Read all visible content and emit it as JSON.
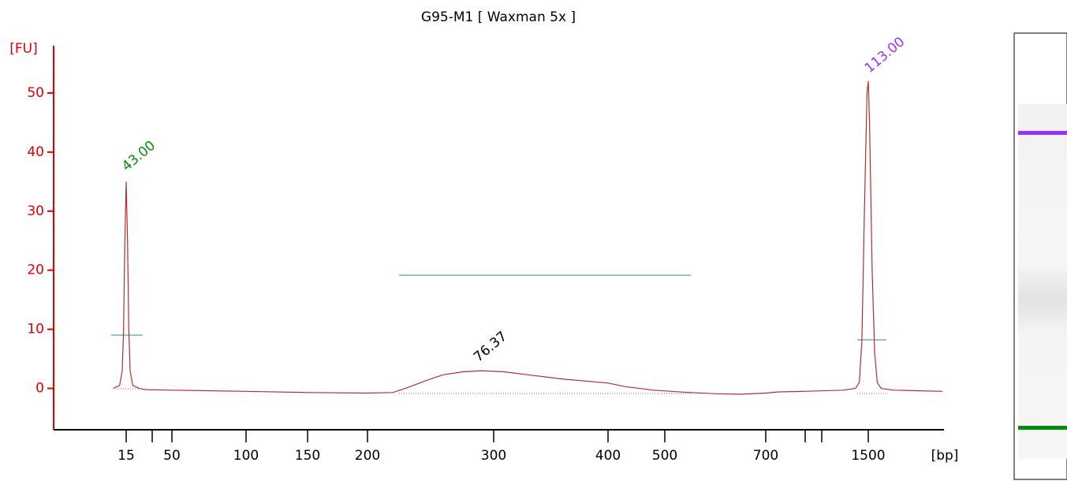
{
  "chart_data": {
    "type": "line",
    "title": "G95-M1  [ Waxman 5x ]",
    "y_label": "[FU]",
    "x_label": "[bp]",
    "axis_color": "#e00000",
    "color": "#b03030",
    "x": [
      5,
      10,
      12,
      13,
      14,
      15,
      16,
      17,
      18,
      20,
      25,
      30,
      50,
      100,
      150,
      200,
      220,
      230,
      240,
      250,
      260,
      275,
      290,
      310,
      330,
      360,
      400,
      430,
      480,
      550,
      600,
      650,
      700,
      800,
      1000,
      1300,
      1400,
      1430,
      1450,
      1470,
      1490,
      1500,
      1510,
      1530,
      1550,
      1570,
      1600,
      1700,
      1900,
      2080
    ],
    "values": [
      0,
      0.5,
      3,
      10,
      25,
      35,
      25,
      10,
      3,
      0.5,
      0,
      -0.2,
      -0.3,
      -0.5,
      -0.7,
      -0.8,
      -0.7,
      0,
      0.8,
      1.6,
      2.3,
      2.8,
      3,
      2.8,
      2.3,
      1.6,
      0.9,
      0.3,
      -0.3,
      -0.7,
      -0.9,
      -1.0,
      -0.8,
      -0.6,
      -0.5,
      -0.3,
      0,
      1,
      8,
      30,
      50,
      52,
      45,
      20,
      6,
      1,
      0,
      -0.3,
      -0.4,
      -0.5
    ],
    "xticks": [
      15,
      50,
      100,
      150,
      200,
      300,
      400,
      500,
      700,
      1500
    ],
    "ylim": [
      -7,
      58
    ],
    "yticks": [
      0,
      10,
      20,
      30,
      40,
      50
    ],
    "annotations": [
      {
        "text": "43.00",
        "color": "#0a8a0a"
      },
      {
        "text": "76.37",
        "color": "#000000"
      },
      {
        "text": "113.00",
        "color": "#9b30ff"
      }
    ]
  }
}
